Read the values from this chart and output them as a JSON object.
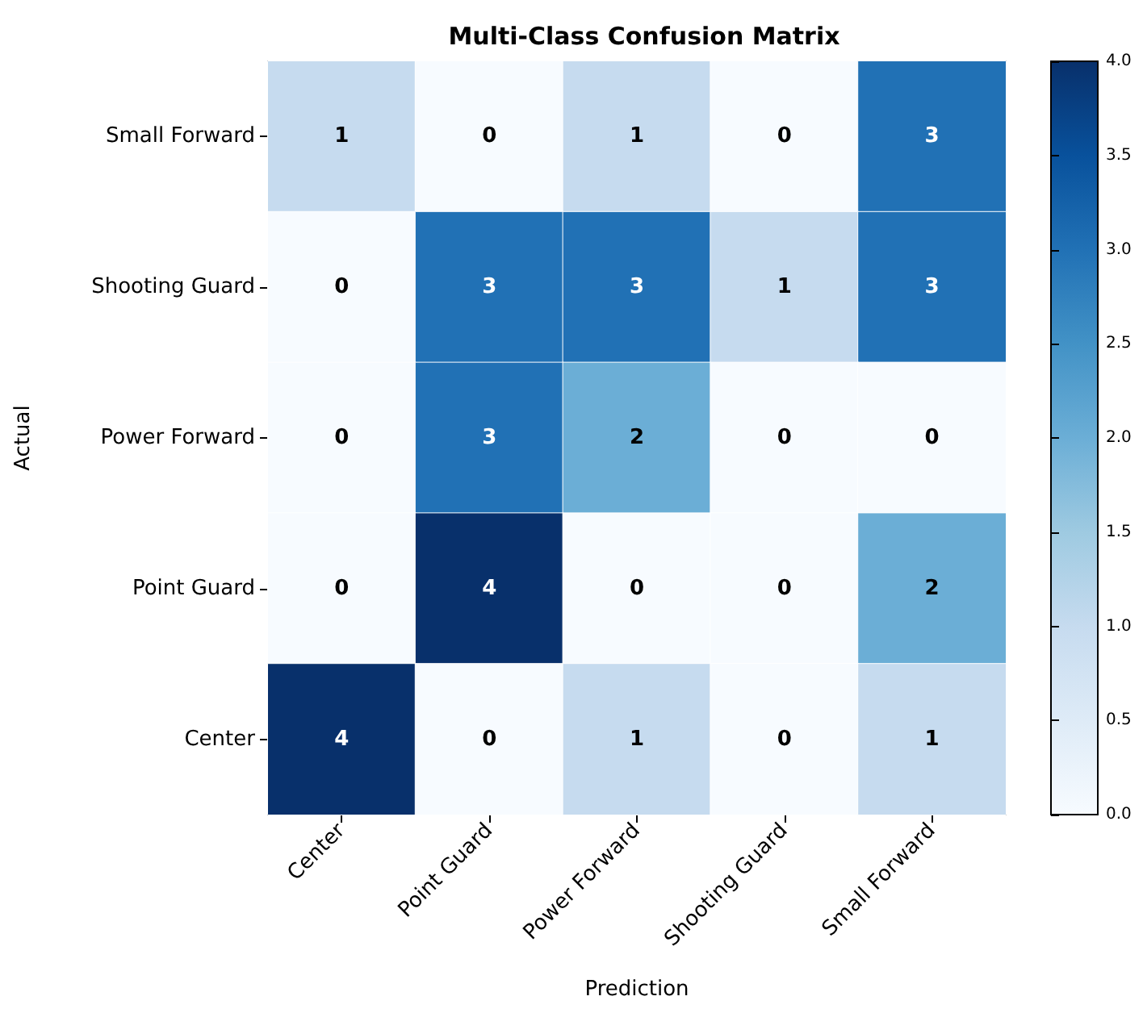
{
  "chart_data": {
    "type": "heatmap",
    "title": "Multi-Class Confusion Matrix",
    "xlabel": "Prediction",
    "ylabel": "Actual",
    "categories": [
      "Center",
      "Point Guard",
      "Power Forward",
      "Shooting Guard",
      "Small Forward"
    ],
    "y_categories": [
      "Small Forward",
      "Shooting Guard",
      "Power Forward",
      "Point Guard",
      "Center"
    ],
    "cells": [
      [
        1,
        0,
        1,
        0,
        3
      ],
      [
        0,
        3,
        3,
        1,
        3
      ],
      [
        0,
        3,
        2,
        0,
        0
      ],
      [
        0,
        4,
        0,
        0,
        2
      ],
      [
        4,
        0,
        1,
        0,
        1
      ]
    ],
    "clim": [
      0,
      4
    ],
    "cticks": [
      {
        "value": 0,
        "label": "0.0"
      },
      {
        "value": 0.5,
        "label": "0.5"
      },
      {
        "value": 1,
        "label": "1.0"
      },
      {
        "value": 1.5,
        "label": "1.5"
      },
      {
        "value": 2,
        "label": "2.0"
      },
      {
        "value": 2.5,
        "label": "2.5"
      },
      {
        "value": 3,
        "label": "3.0"
      },
      {
        "value": 3.5,
        "label": "3.5"
      },
      {
        "value": 4,
        "label": "4.0"
      }
    ],
    "data_labels": true
  }
}
